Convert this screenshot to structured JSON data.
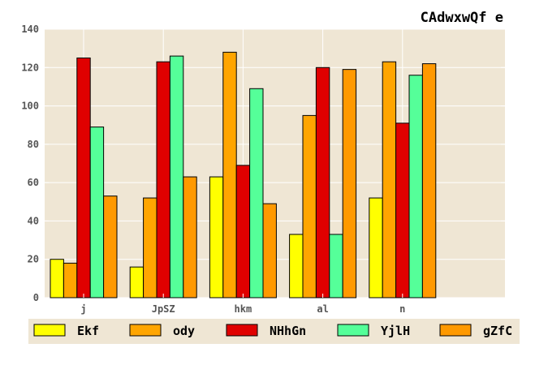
{
  "chart_data": {
    "type": "bar",
    "title": "CAdwxwQf  e",
    "xlabel": "",
    "ylabel": "",
    "categories": [
      "j",
      "JpSZ",
      "hkm",
      "al",
      "n"
    ],
    "ylim": [
      0,
      140
    ],
    "yticks": [
      0,
      20,
      40,
      60,
      80,
      100,
      120,
      140
    ],
    "grid": true,
    "legend_position": "bottom",
    "plot_background": "#efe6d4",
    "series": [
      {
        "name": "Ekf",
        "color": "#ffff00",
        "values": [
          20,
          16,
          63,
          33,
          52
        ]
      },
      {
        "name": "ody",
        "color": "#ffa500",
        "values": [
          18,
          52,
          128,
          95,
          123
        ]
      },
      {
        "name": "NHhGn",
        "color": "#e00000",
        "values": [
          125,
          123,
          69,
          120,
          91
        ]
      },
      {
        "name": "YjlH",
        "color": "#55ff99",
        "values": [
          89,
          126,
          109,
          33,
          116
        ]
      },
      {
        "name": "gZfC",
        "color": "#ff9900",
        "values": [
          53,
          63,
          49,
          119,
          122
        ]
      }
    ]
  }
}
